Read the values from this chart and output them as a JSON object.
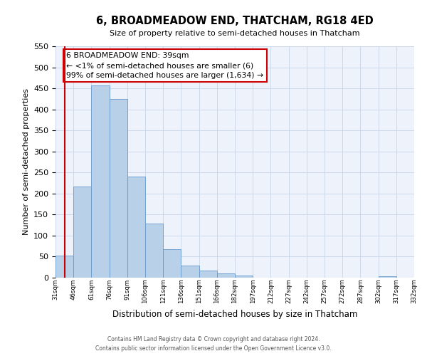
{
  "title": "6, BROADMEADOW END, THATCHAM, RG18 4ED",
  "subtitle": "Size of property relative to semi-detached houses in Thatcham",
  "xlabel": "Distribution of semi-detached houses by size in Thatcham",
  "ylabel": "Number of semi-detached properties",
  "bar_values": [
    52,
    217,
    457,
    425,
    240,
    128,
    68,
    28,
    17,
    10,
    5,
    0,
    0,
    0,
    0,
    0,
    0,
    0,
    3,
    0
  ],
  "bar_labels": [
    "31sqm",
    "46sqm",
    "61sqm",
    "76sqm",
    "91sqm",
    "106sqm",
    "121sqm",
    "136sqm",
    "151sqm",
    "166sqm",
    "182sqm",
    "197sqm",
    "212sqm",
    "227sqm",
    "242sqm",
    "257sqm",
    "272sqm",
    "287sqm",
    "302sqm",
    "317sqm",
    "332sqm"
  ],
  "ylim": [
    0,
    550
  ],
  "yticks": [
    0,
    50,
    100,
    150,
    200,
    250,
    300,
    350,
    400,
    450,
    500,
    550
  ],
  "bar_color": "#b8d0e8",
  "bar_edge_color": "#6699cc",
  "annotation_title": "6 BROADMEADOW END: 39sqm",
  "annotation_line1": "← <1% of semi-detached houses are smaller (6)",
  "annotation_line2": "99% of semi-detached houses are larger (1,634) →",
  "footer1": "Contains HM Land Registry data © Crown copyright and database right 2024.",
  "footer2": "Contains public sector information licensed under the Open Government Licence v3.0.",
  "background_color": "#eef2fb",
  "grid_color": "#c8d4e8",
  "vline_color": "#cc0000",
  "box_edge_color": "#cc0000"
}
